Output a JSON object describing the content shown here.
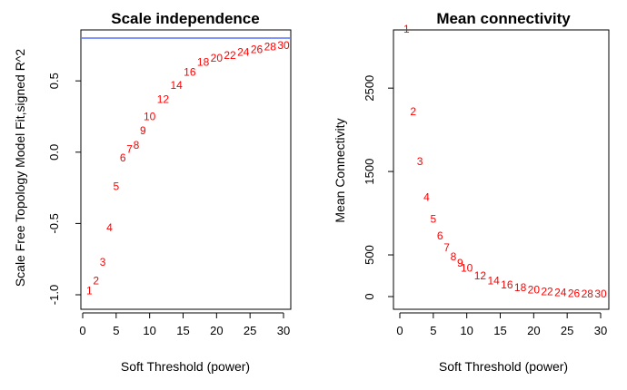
{
  "chart_data": [
    {
      "type": "scatter",
      "title": "Scale independence",
      "xlabel": "Soft Threshold (power)",
      "ylabel": "Scale Free Topology Model Fit,signed R^2",
      "xlim": [
        0,
        30
      ],
      "ylim": [
        -1.0,
        0.8
      ],
      "xticks": [
        "0",
        "5",
        "10",
        "15",
        "20",
        "25",
        "30"
      ],
      "yticks": [
        "-1.0",
        "-0.5",
        "0.0",
        "0.5"
      ],
      "point_color": "#ff0000",
      "hline": {
        "y": 0.8,
        "color": "#3355ff"
      },
      "x": [
        1,
        2,
        3,
        4,
        5,
        6,
        7,
        8,
        9,
        10,
        12,
        14,
        16,
        18,
        20,
        22,
        24,
        26,
        28,
        30
      ],
      "labels": [
        "1",
        "2",
        "3",
        "4",
        "5",
        "6",
        "7",
        "8",
        "9",
        "10",
        "12",
        "14",
        "16",
        "18",
        "20",
        "22",
        "24",
        "26",
        "28",
        "30"
      ],
      "y": [
        -0.97,
        -0.9,
        -0.77,
        -0.53,
        -0.24,
        -0.04,
        0.02,
        0.05,
        0.15,
        0.25,
        0.37,
        0.47,
        0.56,
        0.63,
        0.66,
        0.68,
        0.7,
        0.72,
        0.74,
        0.75
      ]
    },
    {
      "type": "scatter",
      "title": "Mean connectivity",
      "xlabel": "Soft Threshold (power)",
      "ylabel": "Mean Connectivity",
      "xlim": [
        0,
        30
      ],
      "ylim": [
        0,
        3100
      ],
      "xticks": [
        "0",
        "5",
        "10",
        "15",
        "20",
        "25",
        "30"
      ],
      "yticks": [
        "0",
        "500",
        "1500",
        "2500"
      ],
      "point_color": "#ff0000",
      "x": [
        1,
        2,
        3,
        4,
        5,
        6,
        7,
        8,
        9,
        10,
        12,
        14,
        16,
        18,
        20,
        22,
        24,
        26,
        28,
        30
      ],
      "labels": [
        "1",
        "2",
        "3",
        "4",
        "5",
        "6",
        "7",
        "8",
        "9",
        "10",
        "12",
        "14",
        "16",
        "18",
        "20",
        "22",
        "24",
        "26",
        "28",
        "30"
      ],
      "y": [
        3210,
        2220,
        1620,
        1190,
        930,
        730,
        590,
        480,
        400,
        340,
        250,
        190,
        140,
        110,
        80,
        60,
        50,
        40,
        35,
        30
      ]
    }
  ]
}
